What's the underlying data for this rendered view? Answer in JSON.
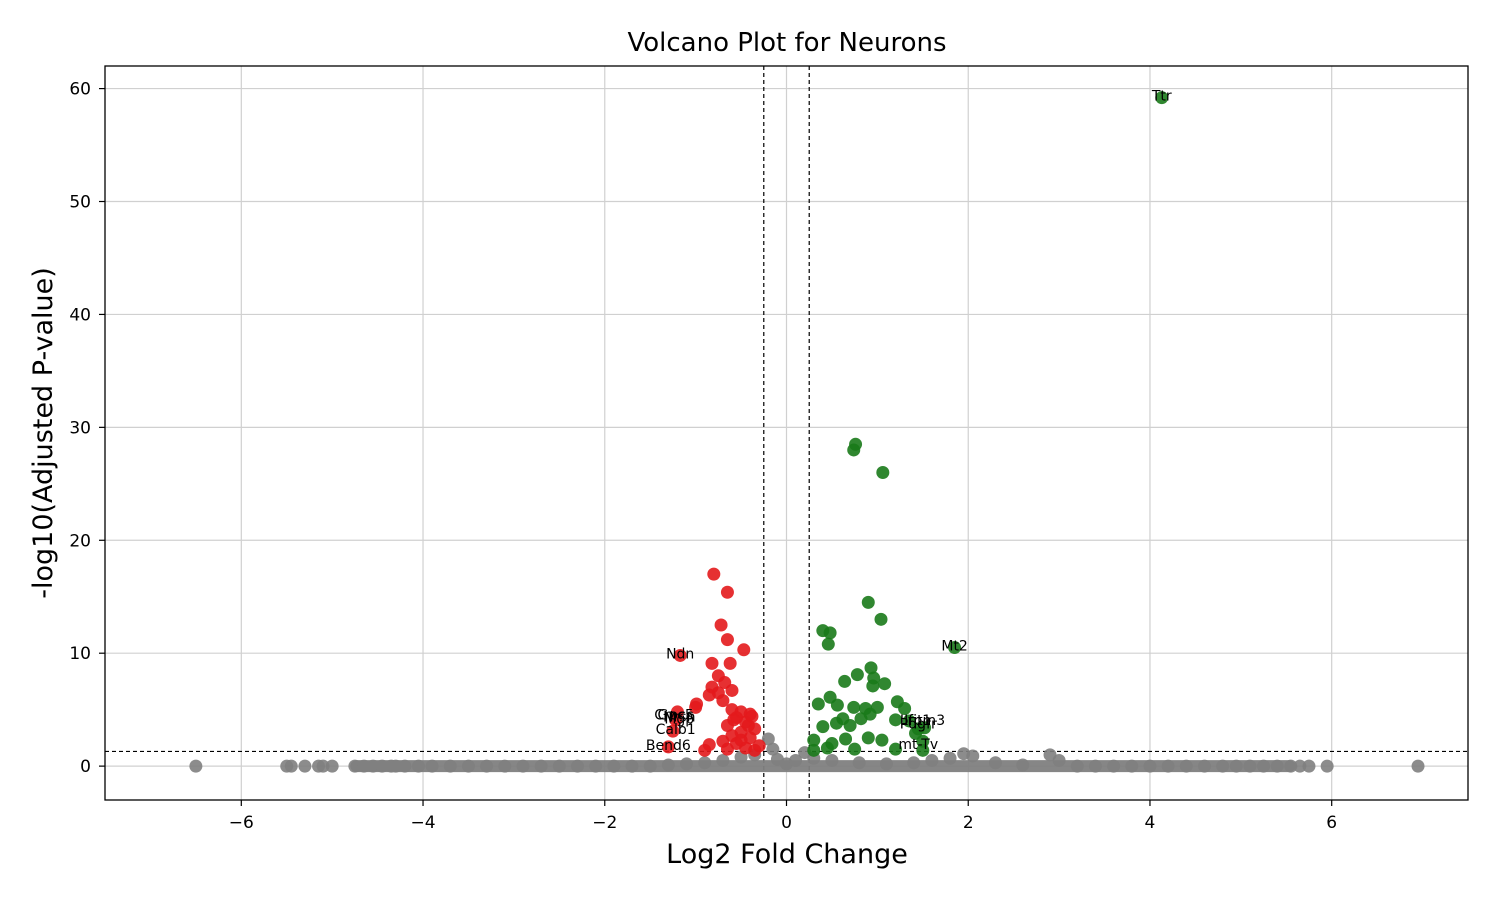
{
  "chart_data": {
    "type": "scatter",
    "title": "Volcano Plot for Neurons",
    "xlabel": "Log2 Fold Change",
    "ylabel": "-log10(Adjusted P-value)",
    "xlim": [
      -7.5,
      7.5
    ],
    "ylim": [
      -3,
      62
    ],
    "x_ticks": [
      -6,
      -4,
      -2,
      0,
      2,
      4,
      6
    ],
    "y_ticks": [
      0,
      10,
      20,
      30,
      40,
      50,
      60
    ],
    "grid": true,
    "thresholds": {
      "log2fc": [
        -0.25,
        0.25
      ],
      "neg_log10_padj": 1.3
    },
    "colors": {
      "up": "#1a7a1a",
      "down": "#e31a1c",
      "ns": "#808080"
    },
    "series": [
      {
        "name": "not significant",
        "color": "#808080",
        "points": [
          [
            -6.5,
            0
          ],
          [
            -5.5,
            0
          ],
          [
            -5.45,
            0
          ],
          [
            -5.3,
            0
          ],
          [
            -5.15,
            0
          ],
          [
            -5.1,
            0
          ],
          [
            -5.0,
            0
          ],
          [
            -4.75,
            0
          ],
          [
            -4.65,
            0
          ],
          [
            -4.55,
            0
          ],
          [
            -4.45,
            0
          ],
          [
            -4.35,
            0
          ],
          [
            -4.3,
            0
          ],
          [
            -4.2,
            0
          ],
          [
            -4.05,
            0
          ],
          [
            -3.9,
            0
          ],
          [
            -3.7,
            0
          ],
          [
            -3.5,
            0
          ],
          [
            -3.3,
            0
          ],
          [
            -3.1,
            0
          ],
          [
            -2.9,
            0
          ],
          [
            -2.7,
            0
          ],
          [
            -2.5,
            0
          ],
          [
            -2.3,
            0
          ],
          [
            -2.1,
            0
          ],
          [
            -1.9,
            0
          ],
          [
            -1.7,
            0
          ],
          [
            -1.5,
            0
          ],
          [
            -1.3,
            0.1
          ],
          [
            -1.1,
            0.2
          ],
          [
            -0.9,
            0.3
          ],
          [
            -0.7,
            0.5
          ],
          [
            -0.5,
            0.8
          ],
          [
            -0.35,
            1.0
          ],
          [
            -0.2,
            2.4
          ],
          [
            -0.15,
            1.5
          ],
          [
            -0.1,
            0.6
          ],
          [
            0.0,
            0.2
          ],
          [
            0.1,
            0.5
          ],
          [
            0.2,
            1.2
          ],
          [
            0.3,
            0.7
          ],
          [
            0.5,
            0.5
          ],
          [
            0.8,
            0.3
          ],
          [
            1.1,
            0.2
          ],
          [
            1.4,
            0.3
          ],
          [
            1.6,
            0.5
          ],
          [
            1.8,
            0.7
          ],
          [
            1.95,
            1.1
          ],
          [
            2.05,
            0.9
          ],
          [
            2.3,
            0.3
          ],
          [
            2.6,
            0.1
          ],
          [
            2.9,
            1.0
          ],
          [
            3.0,
            0.5
          ],
          [
            3.2,
            0
          ],
          [
            3.4,
            0
          ],
          [
            3.6,
            0
          ],
          [
            3.8,
            0
          ],
          [
            4.0,
            0
          ],
          [
            4.2,
            0
          ],
          [
            4.4,
            0
          ],
          [
            4.6,
            0
          ],
          [
            4.8,
            0
          ],
          [
            4.95,
            0
          ],
          [
            5.1,
            0
          ],
          [
            5.25,
            0
          ],
          [
            5.4,
            0
          ],
          [
            5.55,
            0
          ],
          [
            5.65,
            0
          ],
          [
            5.75,
            0
          ],
          [
            5.95,
            0
          ],
          [
            6.95,
            0
          ]
        ]
      },
      {
        "name": "down",
        "color": "#e31a1c",
        "points": [
          [
            -0.8,
            17.0
          ],
          [
            -0.65,
            15.4
          ],
          [
            -0.72,
            12.5
          ],
          [
            -0.65,
            11.2
          ],
          [
            -0.47,
            10.3
          ],
          [
            -1.17,
            9.8
          ],
          [
            -0.82,
            9.1
          ],
          [
            -0.62,
            9.1
          ],
          [
            -0.75,
            8.0
          ],
          [
            -0.68,
            7.4
          ],
          [
            -0.82,
            7.0
          ],
          [
            -0.6,
            6.7
          ],
          [
            -0.75,
            6.5
          ],
          [
            -0.85,
            6.3
          ],
          [
            -0.7,
            5.8
          ],
          [
            -0.99,
            5.5
          ],
          [
            -1.0,
            5.2
          ],
          [
            -1.2,
            4.8
          ],
          [
            -1.22,
            4.1
          ],
          [
            -1.25,
            3.1
          ],
          [
            -1.3,
            1.7
          ],
          [
            -0.6,
            5.0
          ],
          [
            -0.5,
            4.8
          ],
          [
            -0.4,
            4.6
          ],
          [
            -0.55,
            4.3
          ],
          [
            -0.45,
            3.9
          ],
          [
            -0.65,
            3.6
          ],
          [
            -0.35,
            3.3
          ],
          [
            -0.5,
            3.0
          ],
          [
            -0.6,
            2.7
          ],
          [
            -0.4,
            2.5
          ],
          [
            -0.7,
            2.2
          ],
          [
            -0.55,
            2.0
          ],
          [
            -0.85,
            1.9
          ],
          [
            -0.3,
            1.8
          ],
          [
            -0.45,
            1.6
          ],
          [
            -0.65,
            1.5
          ],
          [
            -0.9,
            1.4
          ],
          [
            -0.35,
            1.4
          ],
          [
            -0.5,
            2.3
          ],
          [
            -0.42,
            3.6
          ],
          [
            -0.58,
            4.1
          ],
          [
            -0.38,
            4.4
          ]
        ]
      },
      {
        "name": "up",
        "color": "#1a7a1a",
        "points": [
          [
            4.13,
            59.2
          ],
          [
            0.76,
            28.5
          ],
          [
            0.74,
            28.0
          ],
          [
            1.06,
            26.0
          ],
          [
            0.9,
            14.5
          ],
          [
            1.04,
            13.0
          ],
          [
            0.4,
            12.0
          ],
          [
            0.48,
            11.8
          ],
          [
            0.46,
            10.8
          ],
          [
            1.85,
            10.5
          ],
          [
            0.93,
            8.7
          ],
          [
            0.78,
            8.1
          ],
          [
            0.96,
            7.8
          ],
          [
            1.08,
            7.3
          ],
          [
            0.64,
            7.5
          ],
          [
            0.95,
            7.1
          ],
          [
            0.48,
            6.1
          ],
          [
            1.22,
            5.7
          ],
          [
            0.35,
            5.5
          ],
          [
            0.56,
            5.4
          ],
          [
            0.74,
            5.2
          ],
          [
            0.87,
            5.1
          ],
          [
            1.0,
            5.2
          ],
          [
            1.3,
            5.1
          ],
          [
            0.62,
            4.2
          ],
          [
            0.82,
            4.2
          ],
          [
            0.92,
            4.6
          ],
          [
            1.2,
            4.1
          ],
          [
            1.35,
            4.0
          ],
          [
            0.55,
            3.8
          ],
          [
            0.4,
            3.5
          ],
          [
            0.7,
            3.6
          ],
          [
            1.45,
            3.3
          ],
          [
            1.52,
            3.4
          ],
          [
            1.42,
            2.9
          ],
          [
            0.3,
            2.3
          ],
          [
            0.5,
            2.0
          ],
          [
            0.65,
            2.4
          ],
          [
            0.9,
            2.5
          ],
          [
            1.05,
            2.3
          ],
          [
            1.5,
            2.2
          ],
          [
            0.45,
            1.6
          ],
          [
            0.75,
            1.5
          ],
          [
            1.2,
            1.5
          ],
          [
            0.3,
            1.4
          ],
          [
            1.5,
            1.4
          ]
        ]
      }
    ],
    "annotations": [
      {
        "text": "Ttr",
        "x": 4.13,
        "y": 59.2
      },
      {
        "text": "Mt2",
        "x": 1.85,
        "y": 10.5
      },
      {
        "text": "Ndn",
        "x": -1.17,
        "y": 9.8
      },
      {
        "text": "Gpc5",
        "x": -1.22,
        "y": 4.4
      },
      {
        "text": "Crocc",
        "x": -1.24,
        "y": 4.4
      },
      {
        "text": "Nrsn",
        "x": -1.18,
        "y": 4.2
      },
      {
        "text": "Mgp",
        "x": -1.18,
        "y": 4.05
      },
      {
        "text": "Calb1",
        "x": -1.22,
        "y": 3.1
      },
      {
        "text": "Bend6",
        "x": -1.3,
        "y": 1.7
      },
      {
        "text": "Lrp1",
        "x": 1.42,
        "y": 3.9
      },
      {
        "text": "Ifitm3",
        "x": 1.52,
        "y": 3.9
      },
      {
        "text": "Pdgfr",
        "x": 1.45,
        "y": 3.6
      },
      {
        "text": "mt-Tv",
        "x": 1.45,
        "y": 1.8
      }
    ]
  }
}
